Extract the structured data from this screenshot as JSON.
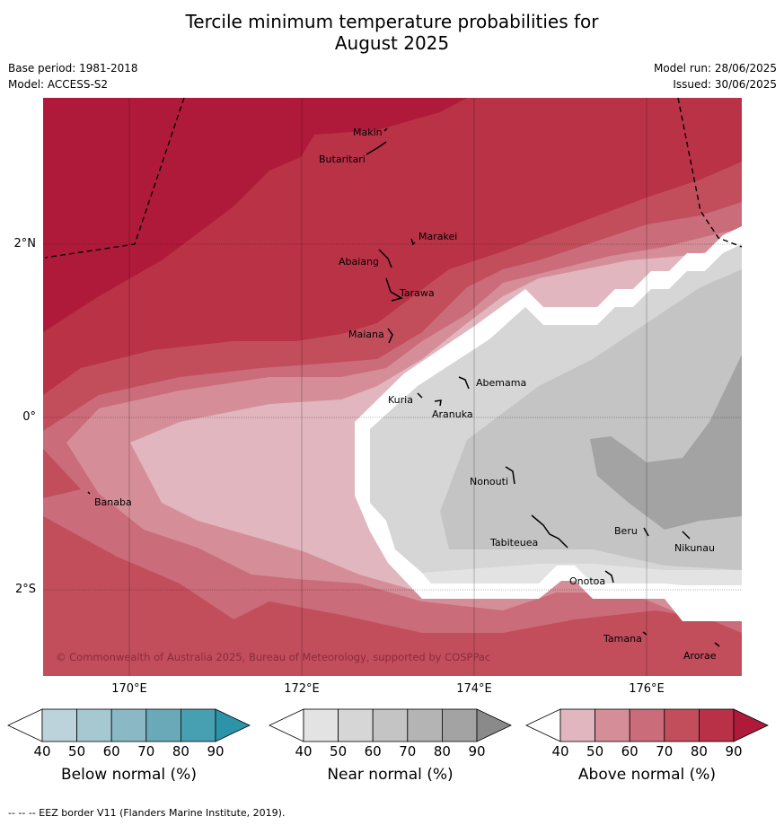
{
  "title_line1": "Tercile minimum temperature probabilities for",
  "title_line2": "August 2025",
  "meta": {
    "base_period": "Base period: 1981-2018",
    "model": "Model: ACCESS-S2",
    "model_run": "Model run: 28/06/2025",
    "issued": "Issued: 30/06/2025"
  },
  "map": {
    "lon_labels": [
      "170°E",
      "172°E",
      "174°E",
      "176°E"
    ],
    "lat_labels": [
      "2°N",
      "0°",
      "2°S"
    ],
    "places": [
      "Makin",
      "Butaritari",
      "Marakei",
      "Abaiang",
      "Tarawa",
      "Maiana",
      "Abemama",
      "Kuria",
      "Aranuka",
      "Banaba",
      "Nonouti",
      "Beru",
      "Tabiteuea",
      "Nikunau",
      "Onotoa",
      "Tamana",
      "Arorae"
    ],
    "copyright": "© Commonwealth of Australia 2025, Bureau of Meteorology, supported by COSPPac"
  },
  "colorbars": [
    {
      "label": "Below normal (%)",
      "ticks": [
        "40",
        "50",
        "60",
        "70",
        "80",
        "90"
      ],
      "colors": [
        "#ffffff",
        "#bcd3db",
        "#a5c8d1",
        "#8ab9c5",
        "#6aaab8",
        "#46a0b2",
        "#2d93a8"
      ]
    },
    {
      "label": "Near normal (%)",
      "ticks": [
        "40",
        "50",
        "60",
        "70",
        "80",
        "90"
      ],
      "colors": [
        "#ffffff",
        "#e3e3e3",
        "#d6d6d6",
        "#c4c4c4",
        "#b4b4b4",
        "#a3a3a3",
        "#8a8a8a"
      ]
    },
    {
      "label": "Above normal (%)",
      "ticks": [
        "40",
        "50",
        "60",
        "70",
        "80",
        "90"
      ],
      "colors": [
        "#ffffff",
        "#e1b6bf",
        "#d58e97",
        "#ca6c79",
        "#c24e5c",
        "#b93146",
        "#b01a3a"
      ]
    }
  ],
  "footer": "--  --  -- EEZ border V11 (Flanders Marine Institute, 2019)."
}
